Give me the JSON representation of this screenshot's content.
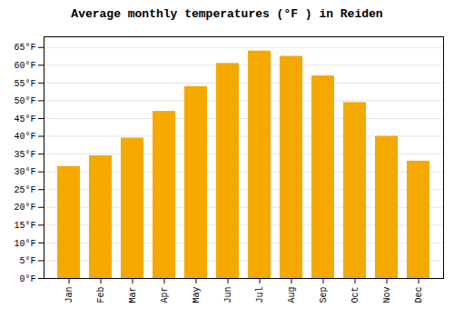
{
  "chart_data": {
    "type": "bar",
    "title": "Average monthly temperatures (°F ) in Reiden",
    "categories": [
      "Jan",
      "Feb",
      "Mar",
      "Apr",
      "May",
      "Jun",
      "Jul",
      "Aug",
      "Sep",
      "Oct",
      "Nov",
      "Dec"
    ],
    "values": [
      31.5,
      34.5,
      39.5,
      47.0,
      54.0,
      60.5,
      64.0,
      62.5,
      57.0,
      49.5,
      40.0,
      33.0
    ],
    "color": "#F5A800",
    "ylim": [
      0,
      68
    ],
    "yticks": [
      {
        "value": 0,
        "label": "0°F"
      },
      {
        "value": 5,
        "label": "5°F"
      },
      {
        "value": 10,
        "label": "10°F"
      },
      {
        "value": 15,
        "label": "15°F"
      },
      {
        "value": 20,
        "label": "20°F"
      },
      {
        "value": 25,
        "label": "25°F"
      },
      {
        "value": 30,
        "label": "30°F"
      },
      {
        "value": 35,
        "label": "35°F"
      },
      {
        "value": 40,
        "label": "40°F"
      },
      {
        "value": 45,
        "label": "45°F"
      },
      {
        "value": 50,
        "label": "50°F"
      },
      {
        "value": 55,
        "label": "55°F"
      },
      {
        "value": 60,
        "label": "60°F"
      },
      {
        "value": 65,
        "label": "65°F"
      }
    ],
    "grid": true
  }
}
